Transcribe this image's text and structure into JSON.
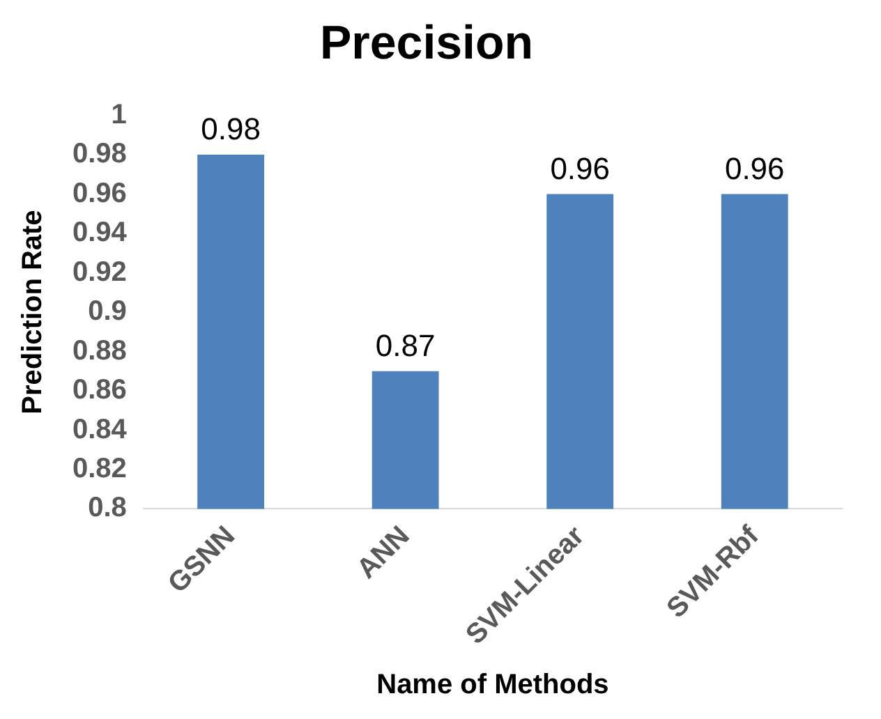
{
  "chart_data": {
    "type": "bar",
    "title": "Precision",
    "xlabel": "Name of Methods",
    "ylabel": "Prediction Rate",
    "categories": [
      "GSNN",
      "ANN",
      "SVM-Linear",
      "SVM-Rbf"
    ],
    "values": [
      0.98,
      0.87,
      0.96,
      0.96
    ],
    "color": "#4f81bd",
    "ylim": [
      0.8,
      1
    ],
    "yticks": [
      0.8,
      0.82,
      0.84,
      0.86,
      0.88,
      0.9,
      0.92,
      0.94,
      0.96,
      0.98,
      1
    ],
    "data_labels": true,
    "grid": false,
    "legend": false
  }
}
